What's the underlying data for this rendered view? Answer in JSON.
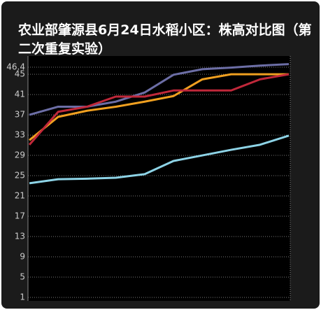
{
  "chart_data": {
    "type": "line",
    "title": "农业部肇源县6月24日水稻小区：株高对比图（第二次重复实验）",
    "ylim": [
      1,
      48.6
    ],
    "yticks": [
      1,
      5,
      9,
      13,
      17,
      21,
      25,
      29,
      33,
      37,
      41,
      45,
      46.4
    ],
    "grid": true,
    "series": [
      {
        "color": "#6c6ea6",
        "values": [
          37,
          38.6,
          38.6,
          39.6,
          41.4,
          44.9,
          46,
          46.3,
          46.7,
          47
        ]
      },
      {
        "color": "#f0a020",
        "values": [
          32,
          36.6,
          37.8,
          38.6,
          39.6,
          40.7,
          44,
          45,
          45,
          45
        ]
      },
      {
        "color": "#c0283a",
        "values": [
          31.1,
          37.6,
          38.6,
          40.6,
          40.6,
          41.8,
          41.8,
          41.8,
          44,
          45
        ]
      },
      {
        "color": "#8dd3e6",
        "values": [
          23.5,
          24.3,
          24.4,
          24.6,
          25.3,
          27.9,
          29,
          30.1,
          31.1,
          32.9
        ]
      }
    ]
  }
}
